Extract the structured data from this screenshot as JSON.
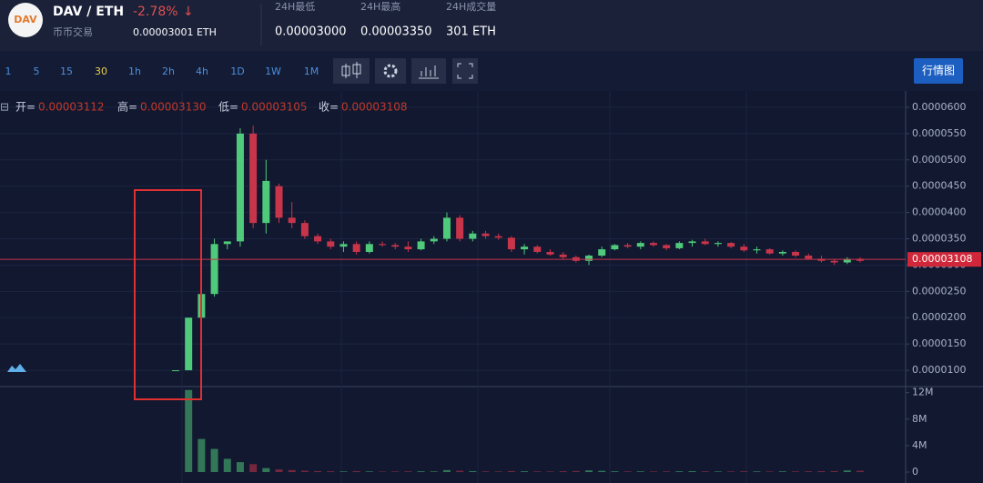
{
  "header": {
    "logo": "DAV",
    "pair": "DAV / ETH",
    "change": "-2.78%",
    "arrow": "↓",
    "subtitle": "币币交易",
    "price": "0.00003001 ETH",
    "stats": [
      {
        "label": "24H最低",
        "value": "0.00003000"
      },
      {
        "label": "24H最高",
        "value": "0.00003350"
      },
      {
        "label": "24H成交量",
        "value": "301 ETH"
      }
    ]
  },
  "toolbar": {
    "intervals": [
      "1",
      "5",
      "15",
      "30",
      "1h",
      "2h",
      "4h",
      "1D",
      "1W",
      "1M"
    ],
    "active": "30",
    "button": "行情图"
  },
  "chart_data": {
    "type": "candlestick",
    "ohlc_legend": [
      {
        "label": "开=",
        "value": "0.00003112"
      },
      {
        "label": "高=",
        "value": "0.00003130"
      },
      {
        "label": "低=",
        "value": "0.00003105"
      },
      {
        "label": "收=",
        "value": "0.00003108"
      }
    ],
    "up_color": "#4fc97a",
    "down_color": "#c8354a",
    "open": [
      1e-05,
      1e-05,
      2e-05,
      2.45e-05,
      3.4e-05,
      3.45e-05,
      5.5e-05,
      3.8e-05,
      4.5e-05,
      3.9e-05,
      3.8e-05,
      3.55e-05,
      3.45e-05,
      3.35e-05,
      3.4e-05,
      3.25e-05,
      3.4e-05,
      3.38e-05,
      3.35e-05,
      3.3e-05,
      3.45e-05,
      3.5e-05,
      3.9e-05,
      3.5e-05,
      3.6e-05,
      3.55e-05,
      3.52e-05,
      3.3e-05,
      3.35e-05,
      3.25e-05,
      3.2e-05,
      3.15e-05,
      3.08e-05,
      3.18e-05,
      3.3e-05,
      3.38e-05,
      3.35e-05,
      3.42e-05,
      3.38e-05,
      3.32e-05,
      3.42e-05,
      3.45e-05,
      3.4e-05,
      3.42e-05,
      3.35e-05,
      3.28e-05,
      3.3e-05,
      3.22e-05,
      3.25e-05,
      3.18e-05,
      3.12e-05,
      3.08e-05,
      3.05e-05,
      3.12e-05
    ],
    "high": [
      1e-05,
      2e-05,
      2.5e-05,
      3.5e-05,
      3.45e-05,
      5.6e-05,
      5.65e-05,
      5e-05,
      4.55e-05,
      4.2e-05,
      3.85e-05,
      3.6e-05,
      3.5e-05,
      3.45e-05,
      3.45e-05,
      3.45e-05,
      3.45e-05,
      3.42e-05,
      3.45e-05,
      3.5e-05,
      3.55e-05,
      4e-05,
      3.95e-05,
      3.65e-05,
      3.65e-05,
      3.6e-05,
      3.55e-05,
      3.4e-05,
      3.38e-05,
      3.3e-05,
      3.25e-05,
      3.18e-05,
      3.2e-05,
      3.35e-05,
      3.4e-05,
      3.42e-05,
      3.45e-05,
      3.45e-05,
      3.4e-05,
      3.45e-05,
      3.48e-05,
      3.5e-05,
      3.45e-05,
      3.44e-05,
      3.4e-05,
      3.35e-05,
      3.32e-05,
      3.28e-05,
      3.28e-05,
      3.22e-05,
      3.18e-05,
      3.12e-05,
      3.15e-05,
      3.15e-05
    ],
    "low": [
      1e-05,
      1e-05,
      1.95e-05,
      2.4e-05,
      3.3e-05,
      3.35e-05,
      3.7e-05,
      3.6e-05,
      3.8e-05,
      3.7e-05,
      3.5e-05,
      3.4e-05,
      3.3e-05,
      3.25e-05,
      3.2e-05,
      3.22e-05,
      3.35e-05,
      3.3e-05,
      3.25e-05,
      3.28e-05,
      3.4e-05,
      3.45e-05,
      3.45e-05,
      3.45e-05,
      3.5e-05,
      3.48e-05,
      3.25e-05,
      3.2e-05,
      3.22e-05,
      3.18e-05,
      3.12e-05,
      3.05e-05,
      3e-05,
      3.15e-05,
      3.28e-05,
      3.32e-05,
      3.3e-05,
      3.35e-05,
      3.28e-05,
      3.3e-05,
      3.35e-05,
      3.38e-05,
      3.35e-05,
      3.32e-05,
      3.25e-05,
      3.22e-05,
      3.2e-05,
      3.18e-05,
      3.15e-05,
      3.1e-05,
      3.05e-05,
      3e-05,
      3.02e-05,
      3.05e-05
    ],
    "close": [
      1e-05,
      2e-05,
      2.45e-05,
      3.4e-05,
      3.45e-05,
      5.5e-05,
      3.8e-05,
      4.6e-05,
      3.9e-05,
      3.8e-05,
      3.55e-05,
      3.45e-05,
      3.35e-05,
      3.4e-05,
      3.25e-05,
      3.4e-05,
      3.38e-05,
      3.35e-05,
      3.3e-05,
      3.45e-05,
      3.5e-05,
      3.9e-05,
      3.5e-05,
      3.6e-05,
      3.55e-05,
      3.52e-05,
      3.3e-05,
      3.35e-05,
      3.25e-05,
      3.2e-05,
      3.15e-05,
      3.08e-05,
      3.18e-05,
      3.3e-05,
      3.38e-05,
      3.35e-05,
      3.42e-05,
      3.38e-05,
      3.32e-05,
      3.42e-05,
      3.45e-05,
      3.4e-05,
      3.42e-05,
      3.35e-05,
      3.28e-05,
      3.3e-05,
      3.22e-05,
      3.25e-05,
      3.18e-05,
      3.12e-05,
      3.08e-05,
      3.05e-05,
      3.12e-05,
      3.08e-05
    ],
    "volume": [
      0,
      12400000,
      5000000,
      3500000,
      2000000,
      1500000,
      1200000,
      600000,
      400000,
      300000,
      200000,
      150000,
      120000,
      100000,
      150000,
      100000,
      80000,
      90000,
      110000,
      120000,
      100000,
      300000,
      200000,
      150000,
      100000,
      90000,
      150000,
      120000,
      100000,
      90000,
      130000,
      150000,
      250000,
      180000,
      120000,
      100000,
      110000,
      90000,
      100000,
      120000,
      140000,
      110000,
      90000,
      100000,
      120000,
      100000,
      90000,
      110000,
      100000,
      120000,
      140000,
      150000,
      250000,
      200000
    ],
    "ylim": [
      6.9e-06,
      6.31e-05
    ],
    "yticks": [
      {
        "value": 1e-05,
        "label": "0.0000100"
      },
      {
        "value": 1.5e-05,
        "label": "0.0000150"
      },
      {
        "value": 2e-05,
        "label": "0.0000200"
      },
      {
        "value": 2.5e-05,
        "label": "0.0000250"
      },
      {
        "value": 3e-05,
        "label": "0.0000300"
      },
      {
        "value": 3.5e-05,
        "label": "0.0000350"
      },
      {
        "value": 4e-05,
        "label": "0.0000400"
      },
      {
        "value": 4.5e-05,
        "label": "0.0000450"
      },
      {
        "value": 5e-05,
        "label": "0.0000500"
      },
      {
        "value": 5.5e-05,
        "label": "0.0000550"
      },
      {
        "value": 6e-05,
        "label": "0.0000600"
      }
    ],
    "y2lim": [
      0,
      12500000
    ],
    "y2ticks": [
      0,
      {
        "value": 4000000,
        "label": "4M"
      },
      {
        "value": 8000000,
        "label": "8M"
      },
      {
        "value": 12000000,
        "label": "12M"
      }
    ],
    "last_price": 3.108e-05,
    "grid": true
  }
}
